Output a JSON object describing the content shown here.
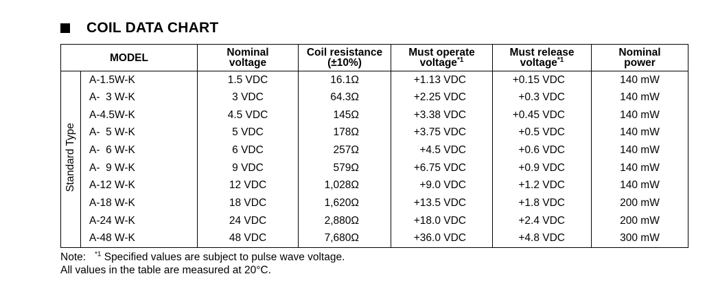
{
  "title": "COIL DATA CHART",
  "side_label": "Standard Type",
  "headers": {
    "model": "MODEL",
    "nominal_voltage": [
      "Nominal",
      "voltage"
    ],
    "coil_resistance": [
      "Coil resistance",
      "(±10%)"
    ],
    "must_operate": [
      "Must operate",
      "voltage"
    ],
    "must_operate_sup": "*1",
    "must_release": [
      "Must release",
      "voltage"
    ],
    "must_release_sup": "*1",
    "nominal_power": [
      "Nominal",
      "power"
    ]
  },
  "rows": [
    {
      "model": "A-1.5W-K",
      "voltage": "1.5 VDC",
      "resistance": "16.1Ω",
      "operate": "+1.13 VDC",
      "release": "+0.15 VDC",
      "power": "140 mW"
    },
    {
      "model": "A-  3 W-K",
      "voltage": "3 VDC",
      "resistance": "64.3Ω",
      "operate": "+2.25 VDC",
      "release": "+0.3 VDC",
      "power": "140 mW"
    },
    {
      "model": "A-4.5W-K",
      "voltage": "4.5 VDC",
      "resistance": "145Ω",
      "operate": "+3.38 VDC",
      "release": "+0.45 VDC",
      "power": "140 mW"
    },
    {
      "model": "A-  5 W-K",
      "voltage": "5 VDC",
      "resistance": "178Ω",
      "operate": "+3.75 VDC",
      "release": "+0.5 VDC",
      "power": "140 mW"
    },
    {
      "model": "A-  6 W-K",
      "voltage": "6 VDC",
      "resistance": "257Ω",
      "operate": "+4.5 VDC",
      "release": "+0.6 VDC",
      "power": "140 mW"
    },
    {
      "model": "A-  9 W-K",
      "voltage": "9 VDC",
      "resistance": "579Ω",
      "operate": "+6.75 VDC",
      "release": "+0.9 VDC",
      "power": "140 mW"
    },
    {
      "model": "A-12 W-K",
      "voltage": "12 VDC",
      "resistance": "1,028Ω",
      "operate": "+9.0 VDC",
      "release": "+1.2 VDC",
      "power": "140 mW"
    },
    {
      "model": "A-18 W-K",
      "voltage": "18 VDC",
      "resistance": "1,620Ω",
      "operate": "+13.5 VDC",
      "release": "+1.8 VDC",
      "power": "200 mW"
    },
    {
      "model": "A-24 W-K",
      "voltage": "24 VDC",
      "resistance": "2,880Ω",
      "operate": "+18.0 VDC",
      "release": "+2.4 VDC",
      "power": "200 mW"
    },
    {
      "model": "A-48 W-K",
      "voltage": "48 VDC",
      "resistance": "7,680Ω",
      "operate": "+36.0 VDC",
      "release": "+4.8 VDC",
      "power": "300 mW"
    }
  ],
  "notes": {
    "prefix": "Note:   ",
    "mark": "*1",
    "text": " Specified values are subject to pulse wave voltage.",
    "line2": "All values in the table are measured at 20°C."
  }
}
